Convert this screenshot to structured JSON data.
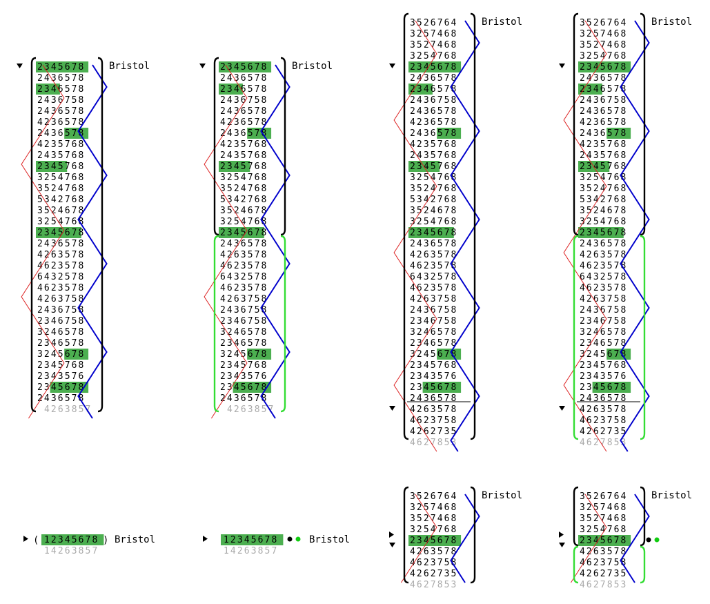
{
  "method_name": "Bristol",
  "colors": {
    "hilite": "#4caf50",
    "green_bracket": "#33dd33",
    "red_line": "#dd2222",
    "blue_line": "#0000cc",
    "ghost_text": "#aaaaaa",
    "treble_one": "#cc2222",
    "eight_bell": "#1144cc"
  },
  "icons": {
    "expanded": "triangle-down-icon",
    "collapsed": "triangle-right-icon",
    "call_dot": "black-dot-icon",
    "green_dot": "green-dot-icon"
  },
  "lead": [
    "2345678",
    "2436578",
    "2346578",
    "2436758",
    "2436578",
    "4236578",
    "2436578",
    "4235768",
    "2435768",
    "2345768",
    "3254768",
    "3524768",
    "5342768",
    "3524678",
    "3254768",
    "2345678",
    "2436578",
    "4263578",
    "4623578",
    "6432578",
    "4623578",
    "4263758",
    "2436758",
    "2346758",
    "3246578",
    "2346578",
    "3245678",
    "2345768",
    "2343576",
    "2345678",
    "2436578"
  ],
  "lead_next": "4263857",
  "half_top": [
    "3526764",
    "3257468",
    "3527468",
    "3254768"
  ],
  "half_bottom": [
    "4263578",
    "4623758",
    "4262735"
  ],
  "ghost_rows": [
    "4627853",
    "4263578"
  ],
  "collapsed": {
    "row": "12345678",
    "ghost": "14263857"
  }
}
